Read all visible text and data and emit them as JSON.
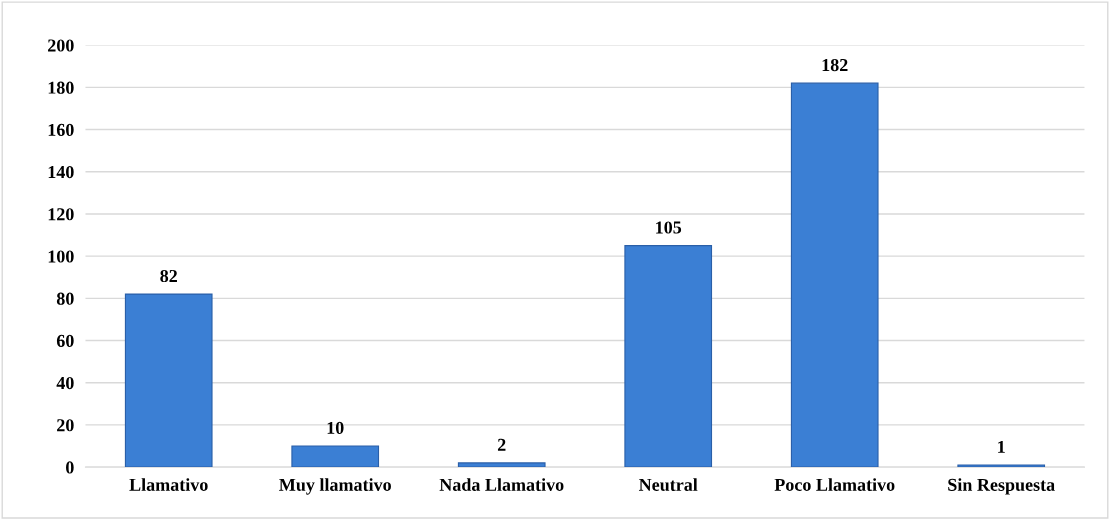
{
  "chart_data": {
    "type": "bar",
    "categories": [
      "Llamativo",
      "Muy llamativo",
      "Nada Llamativo",
      "Neutral",
      "Poco Llamativo",
      "Sin Respuesta"
    ],
    "values": [
      82,
      10,
      2,
      105,
      182,
      1
    ],
    "color": "#3b7fd4",
    "ylim": [
      0,
      200
    ],
    "yticks": [
      0,
      20,
      40,
      60,
      80,
      100,
      120,
      140,
      160,
      180,
      200
    ],
    "grid": "y",
    "data_labels": true,
    "legend": false
  }
}
